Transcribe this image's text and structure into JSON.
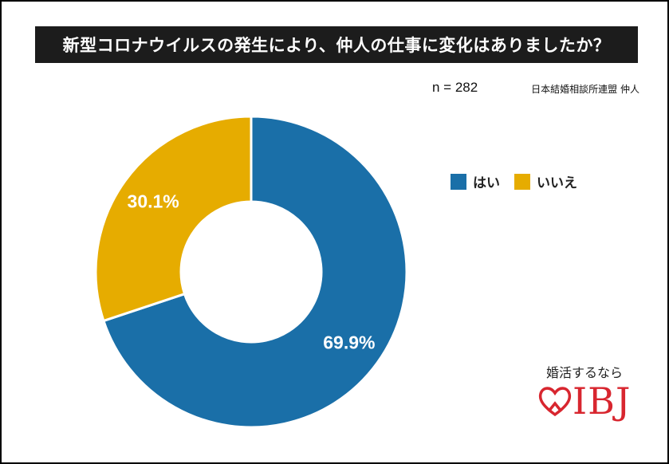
{
  "title": "新型コロナウイルスの発生により、仲人の仕事に変化はありましたか？",
  "sample_label": "n = 282",
  "source": "日本結婚相談所連盟 仲人",
  "logo": {
    "tagline": "婚活するなら",
    "brand": "IBJ",
    "color": "#d8262f"
  },
  "colors": {
    "yes": "#1a6fa8",
    "no": "#e6ac00"
  },
  "chart_data": {
    "type": "pie",
    "donut": true,
    "categories": [
      "はい",
      "いいえ"
    ],
    "values": [
      69.9,
      30.1
    ],
    "data_labels": [
      "69.9%",
      "30.1%"
    ],
    "legend": {
      "position": "right",
      "entries": [
        "はい",
        "いいえ"
      ]
    }
  }
}
